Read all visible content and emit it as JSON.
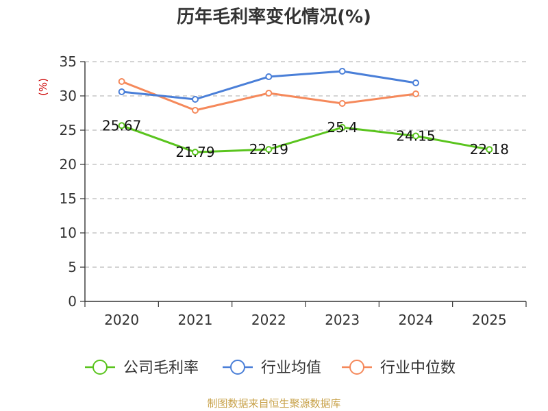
{
  "chart_data": {
    "type": "line",
    "title": "历年毛利率变化情况(%)",
    "ylabel": "(%)",
    "xlabel": "",
    "categories": [
      "2020",
      "2021",
      "2022",
      "2023",
      "2024",
      "2025"
    ],
    "ylim": [
      0,
      35
    ],
    "yticks": [
      0,
      5,
      10,
      15,
      20,
      25,
      30,
      35
    ],
    "grid": true,
    "legend_position": "bottom",
    "series": [
      {
        "name": "公司毛利率",
        "color": "#5ac41e",
        "values": [
          25.67,
          21.79,
          22.19,
          25.4,
          24.15,
          22.18
        ],
        "labels": [
          "25.67",
          "21.79",
          "22.19",
          "25.4",
          "24.15",
          "22.18"
        ]
      },
      {
        "name": "行业均值",
        "color": "#4a7fd8",
        "values": [
          30.6,
          29.5,
          32.8,
          33.6,
          31.9,
          null
        ]
      },
      {
        "name": "行业中位数",
        "color": "#f5895b",
        "values": [
          32.1,
          27.9,
          30.4,
          28.9,
          30.3,
          null
        ]
      }
    ]
  },
  "source": "制图数据来自恒生聚源数据库"
}
